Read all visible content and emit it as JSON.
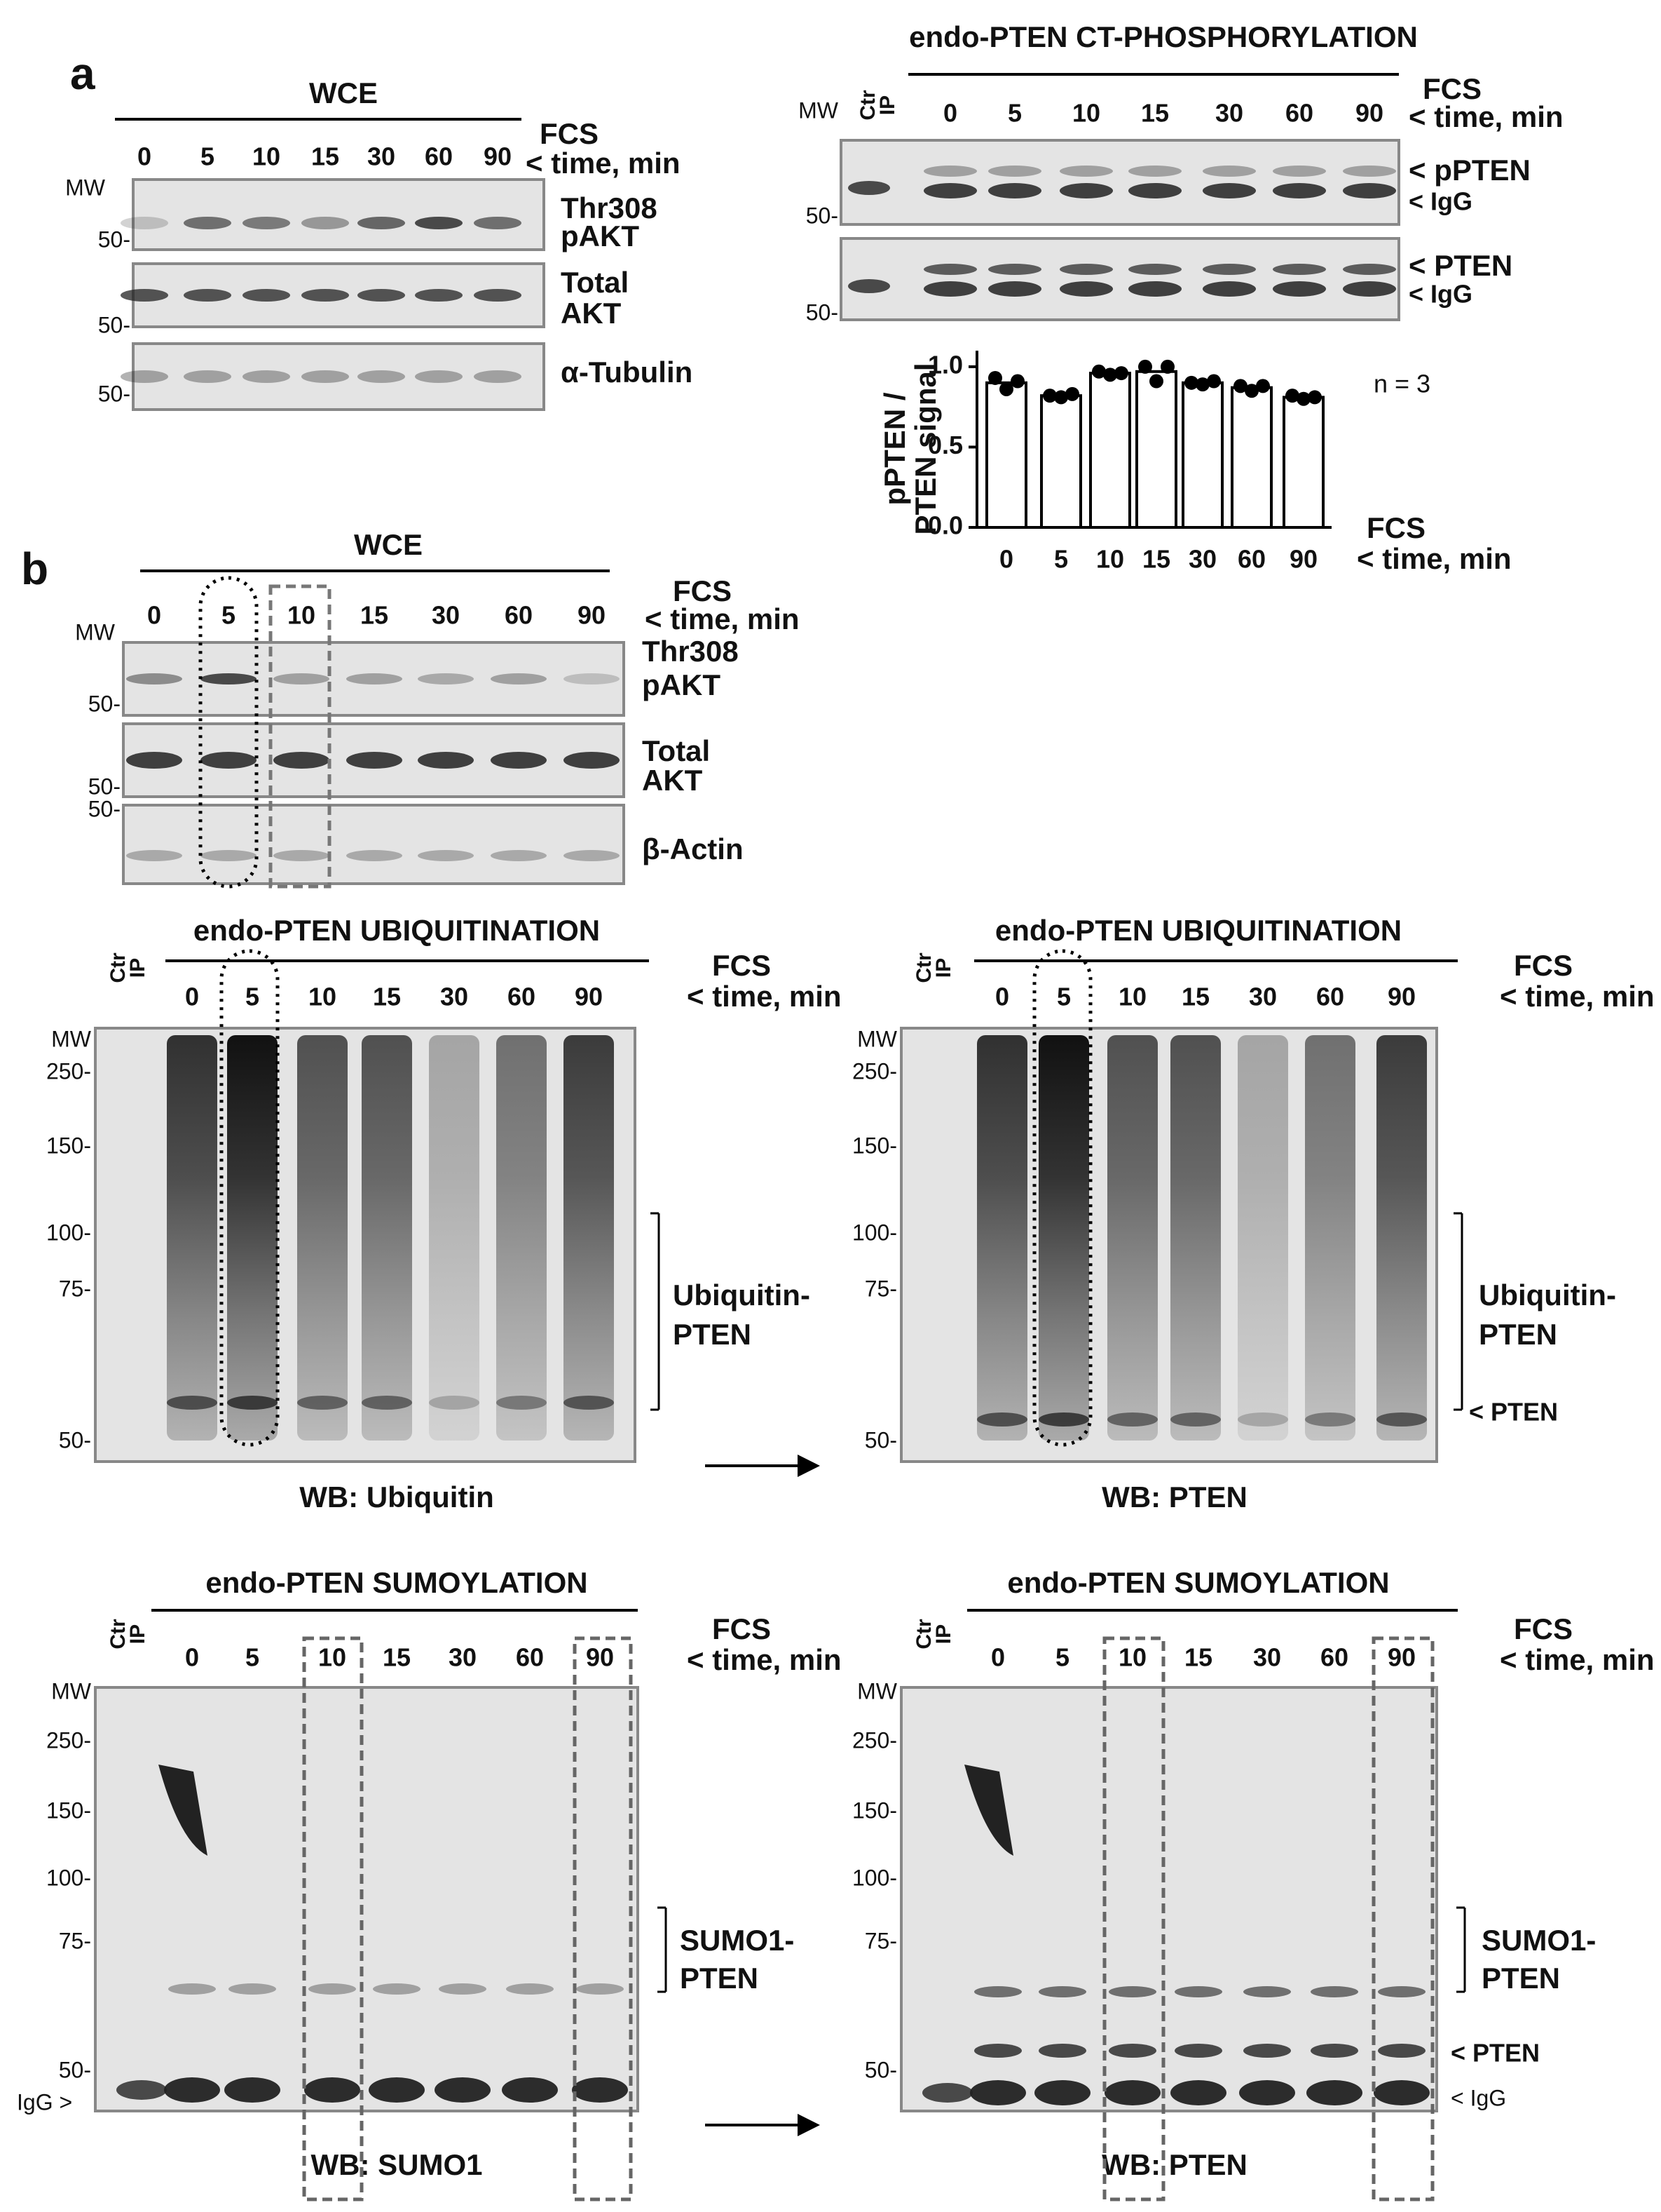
{
  "figure": {
    "panel_labels": {
      "a": "a",
      "b": "b"
    },
    "a_wce": {
      "title": "WCE",
      "fcs": "FCS",
      "time": "< time, min",
      "lanes": [
        "0",
        "5",
        "10",
        "15",
        "30",
        "60",
        "90"
      ],
      "mw": [
        "MW",
        "50-",
        "50-",
        "50-"
      ],
      "rows": [
        [
          "Thr308",
          "pAKT"
        ],
        [
          "Total",
          "AKT"
        ],
        [
          "α-Tubulin"
        ]
      ]
    },
    "a_phospho": {
      "title": "endo-PTEN CT-PHOSPHORYLATION",
      "ctr": [
        "Ctr",
        "IP"
      ],
      "fcs": "FCS",
      "time": "< time, min",
      "lanes": [
        "0",
        "5",
        "10",
        "15",
        "30",
        "60",
        "90"
      ],
      "mw": [
        "MW",
        "50-",
        "50-"
      ],
      "markers": [
        "< pPTEN",
        "< IgG",
        "< PTEN",
        "< IgG"
      ],
      "n_label": "n = 3"
    },
    "b_wce": {
      "title": "WCE",
      "fcs": "FCS",
      "time": "< time, min",
      "lanes": [
        "0",
        "5",
        "10",
        "15",
        "30",
        "60",
        "90"
      ],
      "mw": [
        "MW",
        "50-",
        "50-",
        "50-"
      ],
      "rows": [
        [
          "Thr308",
          "pAKT"
        ],
        [
          "Total",
          "AKT"
        ],
        [
          "β-Actin"
        ]
      ]
    },
    "ubi_left": {
      "title": "endo-PTEN UBIQUITINATION",
      "ctr": [
        "Ctr",
        "IP"
      ],
      "fcs": "FCS",
      "time": "< time, min",
      "lanes": [
        "0",
        "5",
        "10",
        "15",
        "30",
        "60",
        "90"
      ],
      "mw": [
        "MW",
        "250-",
        "150-",
        "100-",
        "75-",
        "50-"
      ],
      "bracket": [
        "Ubiquitin-",
        "PTEN"
      ],
      "markers": [],
      "wb": "WB:  Ubiquitin"
    },
    "ubi_right": {
      "title": "endo-PTEN UBIQUITINATION",
      "ctr": [
        "Ctr",
        "IP"
      ],
      "fcs": "FCS",
      "time": "< time, min",
      "lanes": [
        "0",
        "5",
        "10",
        "15",
        "30",
        "60",
        "90"
      ],
      "mw": [
        "MW",
        "250-",
        "150-",
        "100-",
        "75-",
        "50-"
      ],
      "bracket": [
        "Ubiquitin-",
        "PTEN"
      ],
      "markers": [
        "< PTEN"
      ],
      "wb": "WB:  PTEN"
    },
    "sumo_left": {
      "title": "endo-PTEN SUMOYLATION",
      "ctr": [
        "Ctr",
        "IP"
      ],
      "fcs": "FCS",
      "time": "< time, min",
      "lanes": [
        "0",
        "5",
        "10",
        "15",
        "30",
        "60",
        "90"
      ],
      "mw": [
        "MW",
        "250-",
        "150-",
        "100-",
        "75-",
        "50-"
      ],
      "bracket": [
        "SUMO1-",
        "PTEN"
      ],
      "markers": [
        "IgG >"
      ],
      "wb": "WB: SUMO1"
    },
    "sumo_right": {
      "title": "endo-PTEN SUMOYLATION",
      "ctr": [
        "Ctr",
        "IP"
      ],
      "fcs": "FCS",
      "time": "< time, min",
      "lanes": [
        "0",
        "5",
        "10",
        "15",
        "30",
        "60",
        "90"
      ],
      "mw": [
        "MW",
        "250-",
        "150-",
        "100-",
        "75-",
        "50-"
      ],
      "bracket": [
        "SUMO1-",
        "PTEN"
      ],
      "markers": [
        "< PTEN",
        "< IgG"
      ],
      "wb": "WB:  PTEN"
    }
  },
  "chart_data": {
    "type": "bar",
    "y_label": [
      "pPTEN /",
      "PTEN signal"
    ],
    "x_label": [
      "FCS",
      "< time, min"
    ],
    "categories": [
      "0",
      "5",
      "10",
      "15",
      "30",
      "60",
      "90"
    ],
    "values": [
      0.9,
      0.82,
      0.96,
      0.97,
      0.9,
      0.87,
      0.81
    ],
    "points": [
      [
        0.93,
        0.86,
        0.91
      ],
      [
        0.82,
        0.81,
        0.83
      ],
      [
        0.97,
        0.95,
        0.96
      ],
      [
        1.0,
        0.91,
        1.0
      ],
      [
        0.9,
        0.89,
        0.91
      ],
      [
        0.88,
        0.85,
        0.88
      ],
      [
        0.82,
        0.8,
        0.81
      ]
    ],
    "color": "#ffffff",
    "edge_color": "#000000",
    "ylim": [
      0,
      1.1
    ],
    "yticks": [
      {
        "value": 0,
        "label": "0.0"
      },
      {
        "value": 0.5,
        "label": "0.5"
      },
      {
        "value": 1,
        "label": "1.0"
      }
    ]
  }
}
